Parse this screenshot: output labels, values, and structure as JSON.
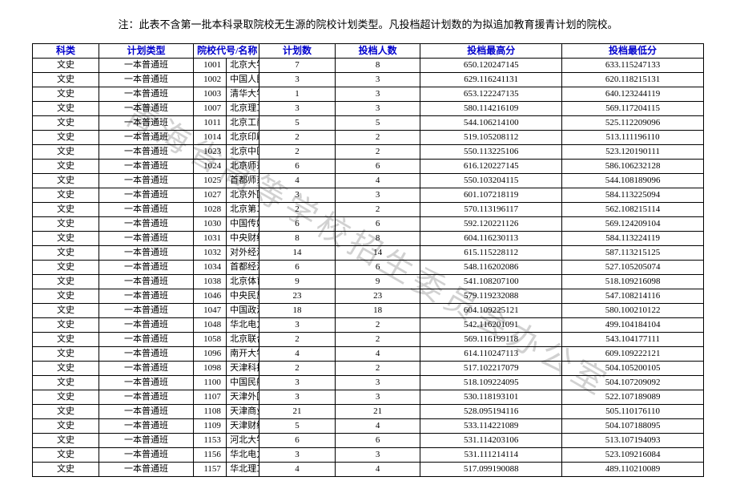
{
  "note": "注：此表不含第一批本科录取院校无生源的院校计划类型。凡投档超计划数的为拟追加教育援青计划的院校。",
  "watermark": "青海省高等学校招生委员会办公室",
  "headers": {
    "subject": "科类",
    "plantype": "计划类型",
    "codename": "院校代号/名称",
    "plan": "计划数",
    "filed": "投档人数",
    "high": "投档最高分",
    "low": "投档最低分"
  },
  "rows": [
    {
      "subject": "文史",
      "plantype": "一本普通班",
      "code": "1001",
      "name": "北京大学",
      "plan": "7",
      "filed": "8",
      "high": "650.120247145",
      "low": "633.115247133"
    },
    {
      "subject": "文史",
      "plantype": "一本普通班",
      "code": "1002",
      "name": "中国人民大学",
      "plan": "3",
      "filed": "3",
      "high": "629.116241131",
      "low": "620.118215131"
    },
    {
      "subject": "文史",
      "plantype": "一本普通班",
      "code": "1003",
      "name": "清华大学",
      "plan": "1",
      "filed": "3",
      "high": "653.122247135",
      "low": "640.123244119"
    },
    {
      "subject": "文史",
      "plantype": "一本普通班",
      "code": "1007",
      "name": "北京理工大学",
      "plan": "3",
      "filed": "3",
      "high": "580.114216109",
      "low": "569.117204115"
    },
    {
      "subject": "文史",
      "plantype": "一本普通班",
      "code": "1011",
      "name": "北京工商大学",
      "plan": "5",
      "filed": "5",
      "high": "544.106214100",
      "low": "525.112209096"
    },
    {
      "subject": "文史",
      "plantype": "一本普通班",
      "code": "1014",
      "name": "北京印刷学院",
      "plan": "2",
      "filed": "2",
      "high": "519.105208112",
      "low": "513.111196110"
    },
    {
      "subject": "文史",
      "plantype": "一本普通班",
      "code": "1023",
      "name": "北京中医药大学",
      "plan": "2",
      "filed": "2",
      "high": "550.113225106",
      "low": "523.120190111"
    },
    {
      "subject": "文史",
      "plantype": "一本普通班",
      "code": "1024",
      "name": "北京师范大学",
      "plan": "6",
      "filed": "6",
      "high": "616.120227145",
      "low": "586.106232128"
    },
    {
      "subject": "文史",
      "plantype": "一本普通班",
      "code": "1025",
      "name": "首都师范大学",
      "plan": "4",
      "filed": "4",
      "high": "550.103204115",
      "low": "544.108189096"
    },
    {
      "subject": "文史",
      "plantype": "一本普通班",
      "code": "1027",
      "name": "北京外国语大学",
      "plan": "3",
      "filed": "3",
      "high": "601.107218119",
      "low": "584.113225094"
    },
    {
      "subject": "文史",
      "plantype": "一本普通班",
      "code": "1028",
      "name": "北京第二外国语学院",
      "plan": "2",
      "filed": "2",
      "high": "570.113196117",
      "low": "562.108215114"
    },
    {
      "subject": "文史",
      "plantype": "一本普通班",
      "code": "1030",
      "name": "中国传媒大学",
      "plan": "6",
      "filed": "6",
      "high": "592.120221126",
      "low": "569.124209104"
    },
    {
      "subject": "文史",
      "plantype": "一本普通班",
      "code": "1031",
      "name": "中央财经大学",
      "plan": "8",
      "filed": "8",
      "high": "604.116230113",
      "low": "584.113224119"
    },
    {
      "subject": "文史",
      "plantype": "一本普通班",
      "code": "1032",
      "name": "对外经济贸易大学",
      "plan": "14",
      "filed": "14",
      "high": "615.115228112",
      "low": "587.113215125"
    },
    {
      "subject": "文史",
      "plantype": "一本普通班",
      "code": "1034",
      "name": "首都经济贸易大学",
      "plan": "6",
      "filed": "6",
      "high": "548.116202086",
      "low": "527.105205074"
    },
    {
      "subject": "文史",
      "plantype": "一本普通班",
      "code": "1038",
      "name": "北京体育大学",
      "plan": "9",
      "filed": "9",
      "high": "541.108207100",
      "low": "518.109216098"
    },
    {
      "subject": "文史",
      "plantype": "一本普通班",
      "code": "1046",
      "name": "中央民族大学",
      "plan": "23",
      "filed": "23",
      "high": "579.119232088",
      "low": "547.108214116"
    },
    {
      "subject": "文史",
      "plantype": "一本普通班",
      "code": "1047",
      "name": "中国政法大学",
      "plan": "18",
      "filed": "18",
      "high": "604.109225121",
      "low": "580.100210122"
    },
    {
      "subject": "文史",
      "plantype": "一本普通班",
      "code": "1048",
      "name": "华北电力大学(北京)",
      "plan": "3",
      "filed": "2",
      "high": "542.116201091",
      "low": "499.104184104"
    },
    {
      "subject": "文史",
      "plantype": "一本普通班",
      "code": "1058",
      "name": "北京联合大学",
      "plan": "2",
      "filed": "2",
      "high": "569.116199118",
      "low": "543.104177111"
    },
    {
      "subject": "文史",
      "plantype": "一本普通班",
      "code": "1096",
      "name": "南开大学",
      "plan": "4",
      "filed": "4",
      "high": "614.110247113",
      "low": "609.109222121"
    },
    {
      "subject": "文史",
      "plantype": "一本普通班",
      "code": "1098",
      "name": "天津科技大学",
      "plan": "2",
      "filed": "2",
      "high": "517.102217079",
      "low": "504.105200105"
    },
    {
      "subject": "文史",
      "plantype": "一本普通班",
      "code": "1100",
      "name": "中国民航大学",
      "plan": "3",
      "filed": "3",
      "high": "518.109224095",
      "low": "504.107209092"
    },
    {
      "subject": "文史",
      "plantype": "一本普通班",
      "code": "1107",
      "name": "天津外国语大学",
      "plan": "3",
      "filed": "3",
      "high": "530.118193101",
      "low": "522.107189089"
    },
    {
      "subject": "文史",
      "plantype": "一本普通班",
      "code": "1108",
      "name": "天津商业大学",
      "plan": "21",
      "filed": "21",
      "high": "528.095194116",
      "low": "505.110176110"
    },
    {
      "subject": "文史",
      "plantype": "一本普通班",
      "code": "1109",
      "name": "天津财经大学",
      "plan": "5",
      "filed": "4",
      "high": "533.114221089",
      "low": "504.107188095"
    },
    {
      "subject": "文史",
      "plantype": "一本普通班",
      "code": "1153",
      "name": "河北大学",
      "plan": "6",
      "filed": "6",
      "high": "531.114203106",
      "low": "513.107194093"
    },
    {
      "subject": "文史",
      "plantype": "一本普通班",
      "code": "1156",
      "name": "华北电力大学(保定)",
      "plan": "3",
      "filed": "3",
      "high": "531.111214114",
      "low": "523.109216084"
    },
    {
      "subject": "文史",
      "plantype": "一本普通班",
      "code": "1157",
      "name": "华北理工大学",
      "plan": "4",
      "filed": "4",
      "high": "517.099190088",
      "low": "489.110210089"
    }
  ]
}
